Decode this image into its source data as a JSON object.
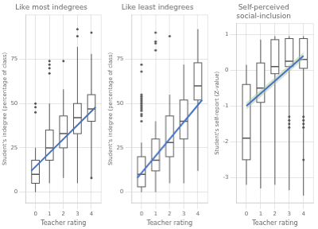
{
  "chart_data": [
    {
      "type": "box",
      "title": "Like most indegrees",
      "x_label": "Teacher rating",
      "y_label": "Student's indegree (percentage of class)",
      "xlim": [
        -0.7,
        4.7
      ],
      "xticks": [
        0,
        1,
        2,
        3,
        4
      ],
      "ylim": [
        -6,
        100
      ],
      "yticks": [
        0,
        25,
        50,
        75
      ],
      "grid": true,
      "color": "#555555",
      "boxes": [
        {
          "x": 0,
          "q1": 5,
          "med": 10,
          "q3": 18,
          "whislo": 0,
          "whishi": 25,
          "fliers": [
            45,
            48,
            50
          ]
        },
        {
          "x": 1,
          "q1": 18,
          "med": 25,
          "q3": 35,
          "whislo": 5,
          "whishi": 50,
          "fliers": [
            67,
            70,
            72,
            74
          ]
        },
        {
          "x": 2,
          "q1": 25,
          "med": 33,
          "q3": 43,
          "whislo": 8,
          "whishi": 58,
          "fliers": [
            74
          ]
        },
        {
          "x": 3,
          "q1": 33,
          "med": 42,
          "q3": 50,
          "whislo": 5,
          "whishi": 82,
          "fliers": [
            88,
            92
          ]
        },
        {
          "x": 4,
          "q1": 40,
          "med": 47,
          "q3": 55,
          "whislo": 8,
          "whishi": 78,
          "fliers": [
            8,
            90
          ]
        }
      ],
      "series": [
        {
          "type": "line",
          "x": [
            -0.3,
            4.3
          ],
          "values": [
            12,
            48
          ],
          "color": "#4472C4"
        }
      ]
    },
    {
      "type": "box",
      "title": "Like least indegrees",
      "x_label": "Teacher rating",
      "y_label": "Student's indegree (percentage of class)",
      "xlim": [
        -0.7,
        4.7
      ],
      "xticks": [
        0,
        1,
        2,
        3,
        4
      ],
      "ylim": [
        -6,
        100
      ],
      "yticks": [
        0,
        25,
        50,
        75
      ],
      "grid": true,
      "color": "#555555",
      "boxes": [
        {
          "x": 0,
          "q1": 3,
          "med": 10,
          "q3": 20,
          "whislo": 0,
          "whishi": 28,
          "fliers": [
            40,
            43,
            44,
            46,
            47,
            48,
            49,
            50,
            51,
            52,
            53,
            54,
            55,
            68,
            72
          ]
        },
        {
          "x": 1,
          "q1": 12,
          "med": 18,
          "q3": 30,
          "whislo": 0,
          "whishi": 40,
          "fliers": [
            80,
            84,
            85,
            90
          ]
        },
        {
          "x": 2,
          "q1": 20,
          "med": 28,
          "q3": 43,
          "whislo": 5,
          "whishi": 55,
          "fliers": [
            88
          ]
        },
        {
          "x": 3,
          "q1": 30,
          "med": 40,
          "q3": 52,
          "whislo": 5,
          "whishi": 72,
          "fliers": []
        },
        {
          "x": 4,
          "q1": 52,
          "med": 60,
          "q3": 73,
          "whislo": 12,
          "whishi": 92,
          "fliers": []
        }
      ],
      "series": [
        {
          "type": "line",
          "x": [
            -0.3,
            4.3
          ],
          "values": [
            8,
            52
          ],
          "color": "#4472C4"
        }
      ]
    },
    {
      "type": "box",
      "title": "Self-perceived\nsocial-inclusion",
      "x_label": "Teacher rating",
      "y_label": "Student's self-report (Z-value)",
      "xlim": [
        -0.7,
        4.7
      ],
      "xticks": [
        0,
        1,
        2,
        3,
        4
      ],
      "ylim": [
        -3.7,
        1.3
      ],
      "yticks": [
        -3,
        -2,
        -1,
        0,
        1
      ],
      "grid": true,
      "color": "#555555",
      "boxes": [
        {
          "x": 0,
          "q1": -2.5,
          "med": -1.9,
          "q3": -0.4,
          "whislo": -3.2,
          "whishi": 0.15,
          "fliers": []
        },
        {
          "x": 1,
          "q1": -0.9,
          "med": -0.5,
          "q3": 0.2,
          "whislo": -3.3,
          "whishi": 0.85,
          "fliers": []
        },
        {
          "x": 2,
          "q1": -0.1,
          "med": 0.1,
          "q3": 0.85,
          "whislo": -3.2,
          "whishi": 0.95,
          "fliers": []
        },
        {
          "x": 3,
          "q1": 0.1,
          "med": 0.25,
          "q3": 0.88,
          "whislo": -3.35,
          "whishi": 0.95,
          "fliers": [
            -1.3,
            -1.4,
            -1.5,
            -1.6
          ]
        },
        {
          "x": 4,
          "q1": 0.05,
          "med": 0.3,
          "q3": 0.88,
          "whislo": -3.5,
          "whishi": 0.95,
          "fliers": [
            -1.3,
            -1.4,
            -1.5,
            -1.6,
            -2.5
          ]
        }
      ],
      "series": [
        {
          "type": "area",
          "x": [
            0,
            4
          ],
          "lower": [
            -1.1,
            0.3
          ],
          "upper": [
            -0.9,
            0.5
          ],
          "color": "#b0c4a0"
        },
        {
          "type": "line",
          "x": [
            0,
            4
          ],
          "values": [
            -1.0,
            0.4
          ],
          "color": "#4472C4"
        }
      ]
    }
  ]
}
